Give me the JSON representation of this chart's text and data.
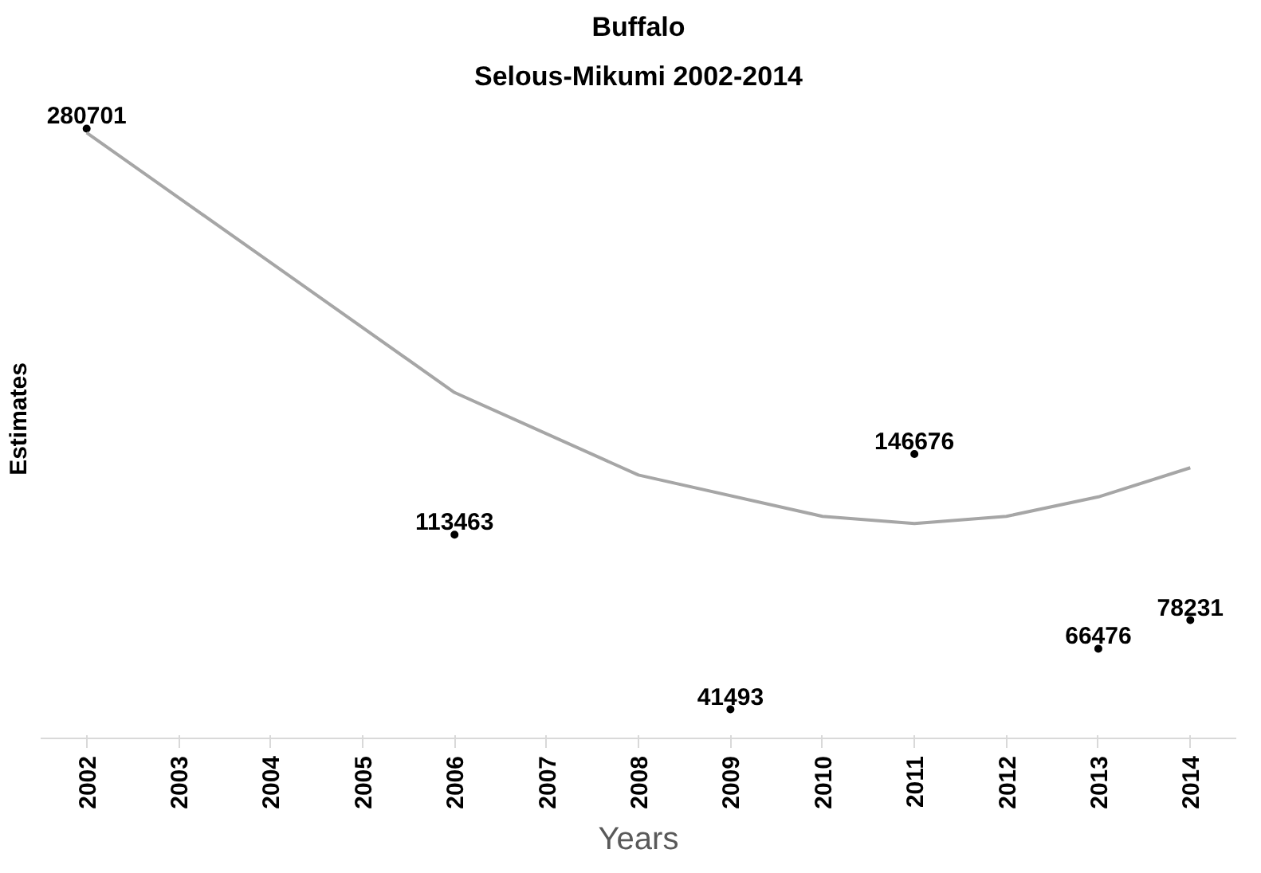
{
  "chart_data": {
    "type": "line",
    "title": "Buffalo",
    "subtitle": "Selous-Mikumi 2002-2014",
    "xlabel": "Years",
    "ylabel": "Estimates",
    "xlim": [
      2001.5,
      2014.5
    ],
    "xticks": [
      2002,
      2003,
      2004,
      2005,
      2006,
      2007,
      2008,
      2009,
      2010,
      2011,
      2012,
      2013,
      2014
    ],
    "tick_labels": "x",
    "grid": false,
    "series": [
      {
        "type": "scatter",
        "marker": "circle",
        "color": "#000000",
        "x": [
          2002,
          2006,
          2009,
          2011,
          2013,
          2014
        ],
        "values": [
          280701,
          113463,
          41493,
          146676,
          66476,
          78231
        ],
        "value_labels": [
          "280701",
          "113463",
          "41493",
          "146676",
          "66476",
          "78231"
        ]
      },
      {
        "color": "#a6a6a6",
        "x": [
          2002,
          2004,
          2006,
          2008,
          2010,
          2011,
          2012,
          2013,
          2014
        ],
        "values": [
          279000,
          225500,
          172000,
          138000,
          121000,
          118000,
          121000,
          129000,
          141000
        ]
      }
    ]
  }
}
